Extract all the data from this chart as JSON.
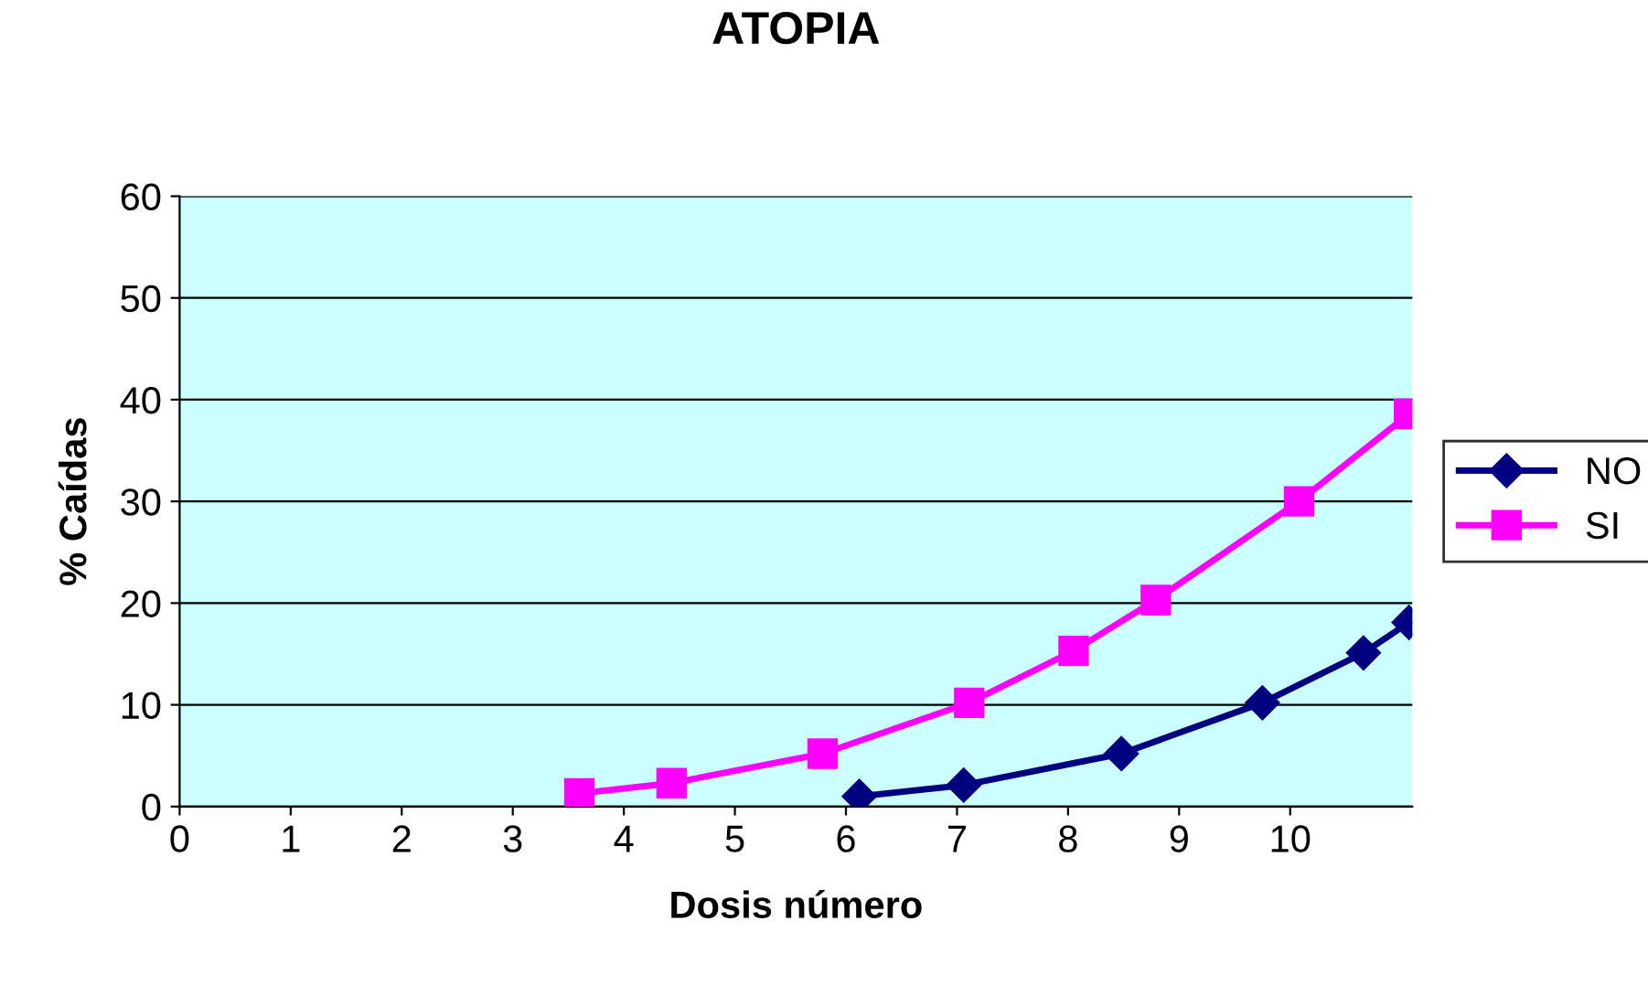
{
  "chart_data": {
    "type": "line",
    "title": "ATOPIA",
    "xlabel": "Dosis número",
    "ylabel": "% Caídas",
    "xlim": [
      0,
      11.1
    ],
    "xticks": [
      0,
      1,
      2,
      3,
      4,
      5,
      6,
      7,
      8,
      9,
      10
    ],
    "ylim": [
      0,
      60
    ],
    "yticks": [
      0,
      10,
      20,
      30,
      40,
      50,
      60
    ],
    "grid": "y",
    "legend": "right",
    "line_style": "solid",
    "series": [
      {
        "name": "NO",
        "color": "#000080",
        "marker": "diamond",
        "x": [
          6.12,
          7.06,
          8.48,
          9.75,
          10.66,
          11.07
        ],
        "values": [
          1,
          2.1,
          5.2,
          10.2,
          15.1,
          18.1
        ]
      },
      {
        "name": "SI",
        "color": "#ff00ff",
        "marker": "square",
        "x": [
          3.6,
          4.43,
          5.79,
          7.11,
          8.05,
          8.79,
          10.08,
          11.07
        ],
        "values": [
          1.3,
          2.3,
          5.2,
          10.2,
          15.3,
          20.3,
          30,
          38.6
        ]
      }
    ]
  }
}
